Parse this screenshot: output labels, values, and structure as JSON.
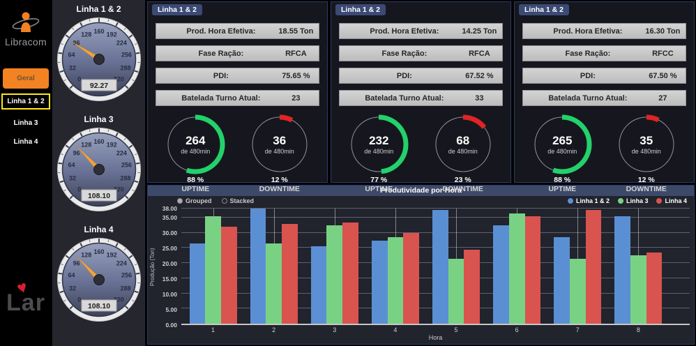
{
  "sidebar": {
    "brand": "Libracom",
    "nav_items": [
      {
        "label": "Geral",
        "style": "orange"
      },
      {
        "label": "Linha 1 & 2",
        "style": "selected"
      },
      {
        "label": "Linha 3",
        "style": "plain"
      },
      {
        "label": "Linha 4",
        "style": "plain"
      }
    ],
    "footer_brand": "Lar"
  },
  "gauges": [
    {
      "title": "Linha 1 & 2",
      "value": "92.27",
      "min": 0,
      "max": 320,
      "tick_step": 32
    },
    {
      "title": "Linha 3",
      "value": "108.10",
      "min": 0,
      "max": 320,
      "tick_step": 32
    },
    {
      "title": "Linha 4",
      "value": "108.10",
      "min": 0,
      "max": 320,
      "tick_step": 32
    }
  ],
  "panels": [
    {
      "tab": "Linha 1 & 2",
      "stats": [
        {
          "label": "Prod. Hora Efetiva:",
          "value": "18.55 Ton"
        },
        {
          "label": "Fase Ração:",
          "value": "RFCA"
        },
        {
          "label": "PDI:",
          "value": "75.65 %"
        },
        {
          "label": "Batelada Turno Atual:",
          "value": "23"
        }
      ],
      "uptime": {
        "minutes": 264,
        "total": 480,
        "total_label": "de 480min",
        "percent": "88 %",
        "label": "UPTIME"
      },
      "downtime": {
        "minutes": 36,
        "total": 480,
        "total_label": "de 480min",
        "percent": "12 %",
        "label": "DOWNTIME"
      }
    },
    {
      "tab": "Linha 1 & 2",
      "stats": [
        {
          "label": "Prod. Hora Efetiva:",
          "value": "14.25 Ton"
        },
        {
          "label": "Fase Ração:",
          "value": "RFCA"
        },
        {
          "label": "PDI:",
          "value": "67.52 %"
        },
        {
          "label": "Batelada Turno Atual:",
          "value": "33"
        }
      ],
      "uptime": {
        "minutes": 232,
        "total": 480,
        "total_label": "de 480min",
        "percent": "77 %",
        "label": "UPTIME"
      },
      "downtime": {
        "minutes": 68,
        "total": 480,
        "total_label": "de 480min",
        "percent": "23 %",
        "label": "DOWNTIME"
      }
    },
    {
      "tab": "Linha 1 & 2",
      "stats": [
        {
          "label": "Prod. Hora Efetiva:",
          "value": "16.30 Ton"
        },
        {
          "label": "Fase Ração:",
          "value": "RFCC"
        },
        {
          "label": "PDI:",
          "value": "67.50 %"
        },
        {
          "label": "Batelada Turno Atual:",
          "value": "27"
        }
      ],
      "uptime": {
        "minutes": 265,
        "total": 480,
        "total_label": "de 480min",
        "percent": "88 %",
        "label": "UPTIME"
      },
      "downtime": {
        "minutes": 35,
        "total": 480,
        "total_label": "de 480min",
        "percent": "12 %",
        "label": "DOWNTIME"
      }
    }
  ],
  "chart": {
    "title": "Produtividade por Hora",
    "controls": [
      {
        "label": "Grouped",
        "selected": true
      },
      {
        "label": "Stacked",
        "selected": false
      }
    ],
    "xlabel": "Hora",
    "ylabel": "Produção (Ton)"
  },
  "chart_data": {
    "type": "bar",
    "title": "Produtividade por Hora",
    "categories": [
      "1",
      "2",
      "3",
      "4",
      "5",
      "6",
      "7",
      "8"
    ],
    "series": [
      {
        "name": "Linha 1 & 2",
        "color": "#5b8fd4",
        "values": [
          26.5,
          38,
          25.5,
          27.5,
          37.5,
          32.5,
          28.5,
          35.5
        ]
      },
      {
        "name": "Linha 3",
        "color": "#79d283",
        "values": [
          35.5,
          26.5,
          32.5,
          28.5,
          21.5,
          36.5,
          21.5,
          22.5
        ]
      },
      {
        "name": "Linha 4",
        "color": "#d9534f",
        "values": [
          32,
          33,
          33.5,
          30,
          24.5,
          35.5,
          37.5,
          23.5
        ]
      }
    ],
    "xlabel": "Hora",
    "ylabel": "Produção (Ton)",
    "ylim": [
      0,
      38
    ],
    "yticks": [
      0,
      5,
      10,
      15,
      20,
      25,
      30,
      35,
      38
    ],
    "grid": true,
    "legend_position": "top-right"
  },
  "colors": {
    "uptime": "#23d16b",
    "downtime": "#e02424",
    "accent_orange": "#f28222",
    "highlight_yellow": "#ffe81a",
    "tab_blue": "#3b4a74"
  }
}
